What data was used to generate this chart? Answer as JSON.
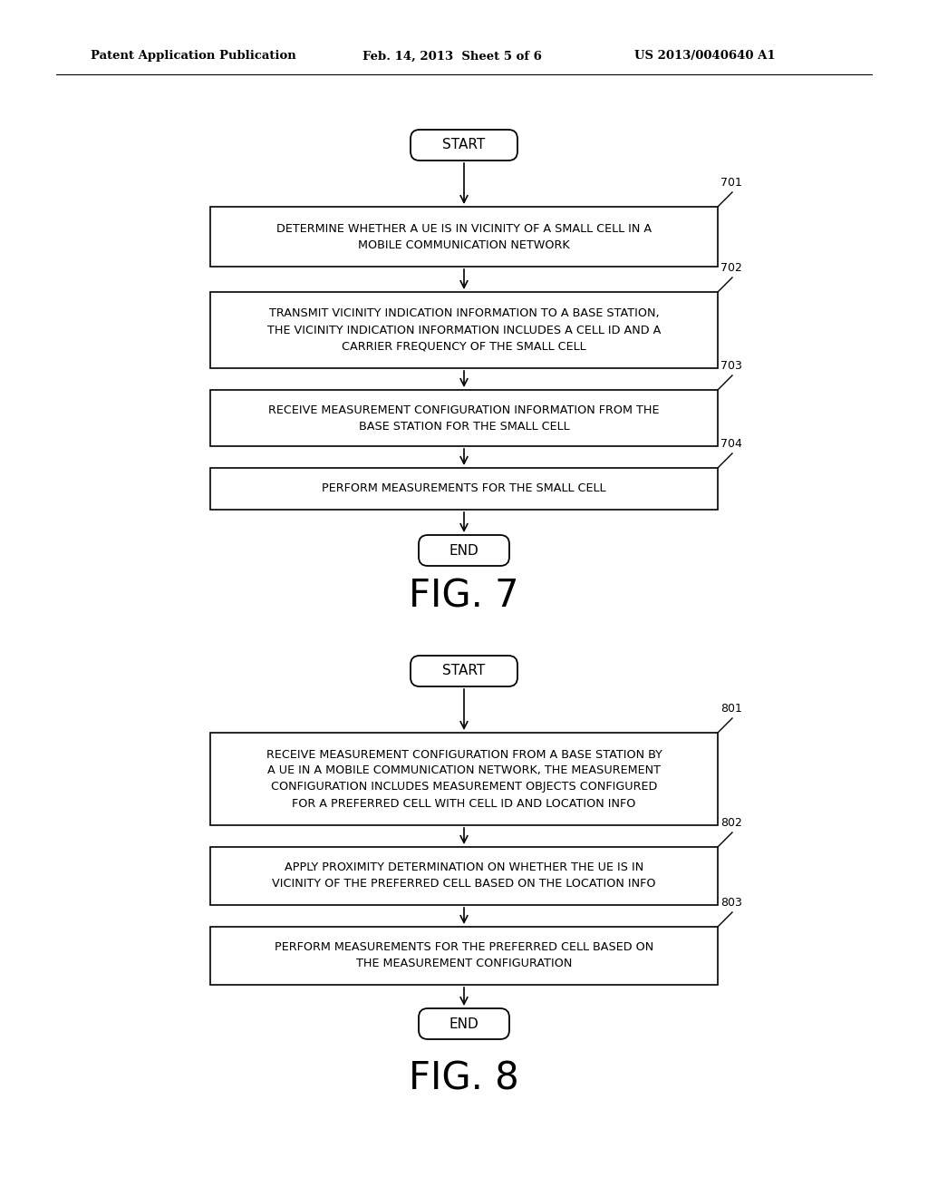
{
  "bg_color": "#ffffff",
  "text_color": "#000000",
  "header_left": "Patent Application Publication",
  "header_mid": "Feb. 14, 2013  Sheet 5 of 6",
  "header_right": "US 2013/0040640 A1",
  "fig7_title": "FIG. 7",
  "fig8_title": "FIG. 8",
  "fig7_start": "START",
  "fig7_end": "END",
  "fig8_start": "START",
  "fig8_end": "END",
  "node701": "DETERMINE WHETHER A UE IS IN VICINITY OF A SMALL CELL IN A\nMOBILE COMMUNICATION NETWORK",
  "node702": "TRANSMIT VICINITY INDICATION INFORMATION TO A BASE STATION,\nTHE VICINITY INDICATION INFORMATION INCLUDES A CELL ID AND A\nCARRIER FREQUENCY OF THE SMALL CELL",
  "node703": "RECEIVE MEASUREMENT CONFIGURATION INFORMATION FROM THE\nBASE STATION FOR THE SMALL CELL",
  "node704": "PERFORM MEASUREMENTS FOR THE SMALL CELL",
  "node801": "RECEIVE MEASUREMENT CONFIGURATION FROM A BASE STATION BY\nA UE IN A MOBILE COMMUNICATION NETWORK, THE MEASUREMENT\nCONFIGURATION INCLUDES MEASUREMENT OBJECTS CONFIGURED\nFOR A PREFERRED CELL WITH CELL ID AND LOCATION INFO",
  "node802": "APPLY PROXIMITY DETERMINATION ON WHETHER THE UE IS IN\nVICINITY OF THE PREFERRED CELL BASED ON THE LOCATION INFO",
  "node803": "PERFORM MEASUREMENTS FOR THE PREFERRED CELL BASED ON\nTHE MEASUREMENT CONFIGURATION",
  "tag701": "701",
  "tag702": "702",
  "tag703": "703",
  "tag704": "704",
  "tag801": "801",
  "tag802": "802",
  "tag803": "803"
}
